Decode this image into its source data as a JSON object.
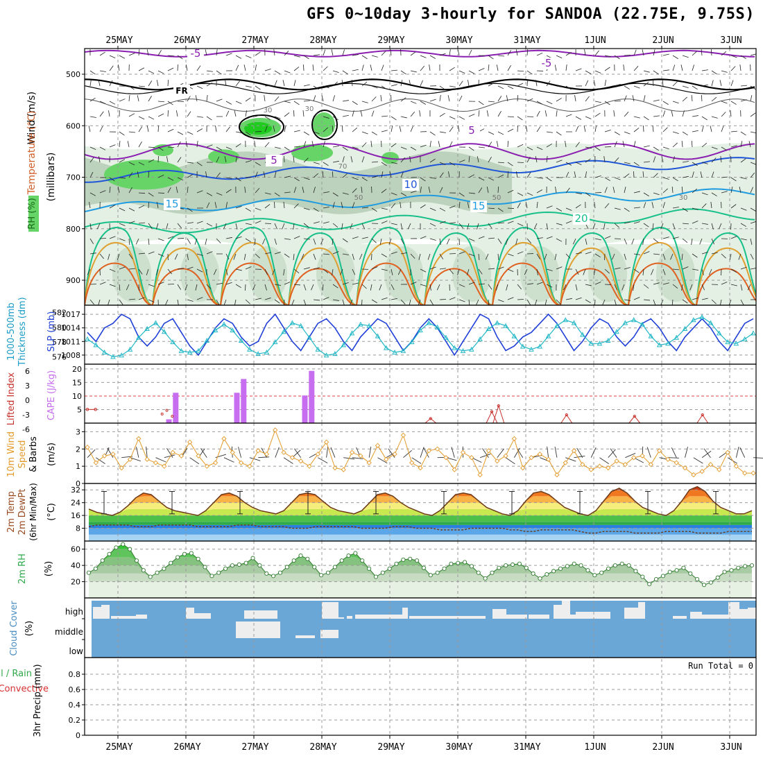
{
  "title": "GFS 0~10day 3-hourly for SANDOA (22.75E, 9.75S)",
  "date_labels": [
    "25MAY",
    "26MAY",
    "27MAY",
    "28MAY",
    "29MAY",
    "30MAY",
    "31MAY",
    "1JUN",
    "2JUN",
    "3JUN"
  ],
  "panel_labels": {
    "upper": [
      "RH (%)",
      "Temperature (°C)",
      "Wind (m/s)",
      "(millibars)"
    ],
    "slp": [
      "1000-500mb",
      "Thickness (dm)",
      "SLP (mb)"
    ],
    "cape": [
      "Lifted Index",
      "CAPE (J/kg)"
    ],
    "wind10": [
      "10m Wind",
      "Speed",
      "& Barbs",
      "(m/s)"
    ],
    "temp2m": [
      "2m Temp",
      "2m DewPt",
      "(6hr Min/Max)",
      "(°C)"
    ],
    "rh2m": [
      "2m RH",
      "(%)"
    ],
    "cloud": [
      "Cloud Cover",
      "(%)"
    ],
    "precip": [
      "Total / Rain",
      "Convective",
      "3hr Precip (mm)"
    ]
  },
  "run_total": "Run Total = 0",
  "colors": {
    "frame": "#000000",
    "grid": "#999999",
    "rh_light": "#e3f0e3",
    "rh_mid": "#bcd2bc",
    "rh_green": "#66d466",
    "rh_bright": "#1ecb1e",
    "cloud": "#6aa7d6",
    "slp": "#1f3fd8",
    "thick": "#20b7c7",
    "cape": "#c66df0",
    "li": "#c8302b",
    "wind": "#e49a2a"
  },
  "chart_data": [
    {
      "type": "heatmap",
      "name": "upper-air",
      "y_ticks": [
        500,
        600,
        700,
        800,
        900
      ],
      "ylim": [
        1000,
        450
      ],
      "isotherm_labels": [
        "-5",
        "-5",
        "5",
        "-5",
        "5",
        "10",
        "15",
        "15",
        "20"
      ],
      "rh_labels": [
        "30",
        "30",
        "70",
        "50",
        "50",
        "30"
      ],
      "freezing_label": "FR"
    },
    {
      "type": "line",
      "name": "slp-thickness",
      "left_ticks": [
        576,
        578,
        580,
        582
      ],
      "right_ticks": [
        1008,
        1011,
        1014,
        1017
      ],
      "series": [
        {
          "name": "SLP (mb)",
          "axis": "right",
          "values": [
            1013,
            1011,
            1014,
            1015,
            1017,
            1016,
            1012,
            1010,
            1012,
            1015,
            1016,
            1013,
            1010,
            1008,
            1011,
            1014,
            1016,
            1015,
            1012,
            1010,
            1011,
            1015,
            1017,
            1014,
            1011,
            1009,
            1012,
            1015,
            1016,
            1014,
            1011,
            1009,
            1012,
            1014,
            1016,
            1015,
            1012,
            1009,
            1011,
            1014,
            1016,
            1014,
            1011,
            1008,
            1011,
            1014,
            1017,
            1016,
            1012,
            1009,
            1010,
            1012,
            1013,
            1015,
            1017,
            1015,
            1012,
            1009,
            1011,
            1014,
            1016,
            1015,
            1012,
            1010,
            1012,
            1015,
            1016,
            1014,
            1011,
            1009,
            1012,
            1014,
            1016,
            1014,
            1011,
            1009,
            1012,
            1015,
            1016
          ]
        },
        {
          "name": "1000-500mb Thickness (dm)",
          "axis": "left",
          "values": [
            578.4,
            577.6,
            576.6,
            576.0,
            576.2,
            577.0,
            578.6,
            579.8,
            580.6,
            579.4,
            578.0,
            576.8,
            576.6,
            576.8,
            578.2,
            579.6,
            580.4,
            579.6,
            578.2,
            577.0,
            576.4,
            576.6,
            578.0,
            579.4,
            580.6,
            580.2,
            578.6,
            577.0,
            576.2,
            576.4,
            577.6,
            579.2,
            580.4,
            580.2,
            578.8,
            577.2,
            576.6,
            576.8,
            578.0,
            579.6,
            580.6,
            580.0,
            578.6,
            577.2,
            576.8,
            577.0,
            578.4,
            579.8,
            580.6,
            580.2,
            578.8,
            577.4,
            577.0,
            577.4,
            578.8,
            580.2,
            581.0,
            580.6,
            579.0,
            577.8,
            577.8,
            578.2,
            579.4,
            580.6,
            581.0,
            580.4,
            578.8,
            577.6,
            577.8,
            578.6,
            579.8,
            581.0,
            581.4,
            580.6,
            579.2,
            578.0,
            577.8,
            578.4,
            579.2
          ]
        }
      ]
    },
    {
      "type": "bar",
      "name": "cape-lifted-index",
      "cape_ticks": [
        5,
        10,
        15,
        20
      ],
      "li_ticks": [
        6,
        3,
        0,
        -3,
        -6
      ],
      "cape_values": [
        {
          "day": 0.75,
          "value": 1.4
        },
        {
          "day": 0.85,
          "value": 11.2
        },
        {
          "day": 1.75,
          "value": 11.2
        },
        {
          "day": 1.85,
          "value": 16.3
        },
        {
          "day": 2.75,
          "value": 10.2
        },
        {
          "day": 2.85,
          "value": 19.3
        }
      ],
      "lifted_index_values": [
        3,
        3,
        5,
        5.5,
        3.5,
        5.5
      ]
    },
    {
      "type": "line",
      "name": "10m-wind",
      "ylim": [
        0,
        3.5
      ],
      "y_ticks": [
        0,
        1,
        2,
        3
      ],
      "values": [
        2.1,
        1.2,
        1.6,
        1.7,
        0.9,
        1.4,
        2.6,
        1.4,
        1.2,
        1.0,
        1.8,
        1.6,
        2.4,
        1.6,
        1.0,
        1.2,
        2.6,
        1.8,
        1.2,
        1.0,
        1.9,
        1.7,
        3.1,
        1.8,
        1.5,
        1.3,
        1.0,
        1.7,
        2.4,
        0.9,
        0.8,
        1.8,
        1.6,
        1.2,
        2.2,
        1.4,
        1.7,
        2.8,
        1.2,
        0.9,
        1.9,
        2.0,
        1.5,
        0.8,
        1.8,
        1.5,
        0.5,
        1.9,
        1.3,
        1.6,
        2.6,
        0.9,
        1.5,
        1.7,
        1.4,
        0.5,
        1.2,
        1.9,
        1.1,
        0.8,
        1.0,
        0.9,
        1.3,
        1.1,
        1.5,
        1.6,
        1.1,
        1.9,
        1.4,
        1.2,
        0.9,
        0.5,
        0.7,
        1.1,
        0.8,
        1.8,
        1.0,
        0.6,
        0.6
      ]
    },
    {
      "type": "area",
      "name": "2m-temperature",
      "ylim": [
        0,
        36
      ],
      "y_ticks": [
        8,
        16,
        24,
        32
      ],
      "temperature": [
        20,
        18,
        17,
        16,
        18,
        22,
        27,
        30,
        29,
        25,
        21,
        19,
        18,
        17,
        16,
        19,
        24,
        29,
        30,
        28,
        24,
        21,
        19,
        18,
        17,
        19,
        24,
        29,
        30,
        29,
        25,
        21,
        19,
        18,
        17,
        19,
        24,
        29,
        30,
        28,
        24,
        21,
        19,
        17,
        16,
        19,
        24,
        29,
        30,
        29,
        25,
        21,
        19,
        17,
        16,
        19,
        25,
        30,
        31,
        29,
        25,
        21,
        19,
        17,
        16,
        19,
        25,
        31,
        33,
        30,
        25,
        21,
        19,
        17,
        16,
        19,
        25,
        32,
        34,
        31,
        25,
        21,
        19,
        17,
        17,
        19
      ],
      "dewpoint": [
        9,
        10,
        10,
        10,
        10,
        10,
        9,
        9,
        9,
        10,
        10,
        10,
        10,
        10,
        9,
        9,
        9,
        9,
        9,
        10,
        10,
        10,
        9,
        9,
        9,
        9,
        8,
        8,
        8,
        9,
        9,
        9,
        9,
        9,
        9,
        8,
        8,
        8,
        8,
        9,
        9,
        9,
        8,
        8,
        8,
        7,
        7,
        7,
        7,
        8,
        8,
        8,
        8,
        8,
        7,
        7,
        6,
        6,
        7,
        7,
        7,
        7,
        7,
        6,
        5,
        5,
        6,
        6,
        6,
        6,
        5,
        5,
        5,
        5,
        6,
        6,
        6,
        6,
        5,
        5,
        5,
        5,
        6,
        6,
        6,
        6
      ]
    },
    {
      "type": "area",
      "name": "2m-relative-humidity",
      "ylim": [
        0,
        70
      ],
      "y_ticks": [
        20,
        40,
        60
      ],
      "values": [
        31,
        36,
        46,
        54,
        62,
        66,
        60,
        46,
        34,
        26,
        31,
        36,
        43,
        50,
        54,
        55,
        48,
        38,
        27,
        31,
        36,
        40,
        41,
        43,
        49,
        40,
        30,
        27,
        31,
        38,
        46,
        52,
        48,
        38,
        28,
        31,
        38,
        46,
        52,
        55,
        46,
        36,
        26,
        31,
        36,
        42,
        47,
        48,
        46,
        37,
        28,
        31,
        36,
        42,
        43,
        44,
        39,
        31,
        24,
        31,
        37,
        40,
        41,
        42,
        37,
        30,
        24,
        29,
        33,
        36,
        39,
        42,
        40,
        34,
        28,
        31,
        36,
        40,
        42,
        40,
        33,
        26,
        17,
        23,
        27,
        32,
        34,
        37,
        30,
        23,
        16,
        19,
        25,
        32,
        34,
        37,
        39,
        40
      ]
    },
    {
      "type": "bar",
      "name": "cloud-cover",
      "row_labels": [
        "high",
        "middle",
        "low"
      ]
    },
    {
      "type": "bar",
      "name": "3hr-precip",
      "ylim": [
        0,
        1
      ],
      "y_ticks": [
        0,
        0.2,
        0.4,
        0.6,
        0.8
      ],
      "values": []
    }
  ]
}
